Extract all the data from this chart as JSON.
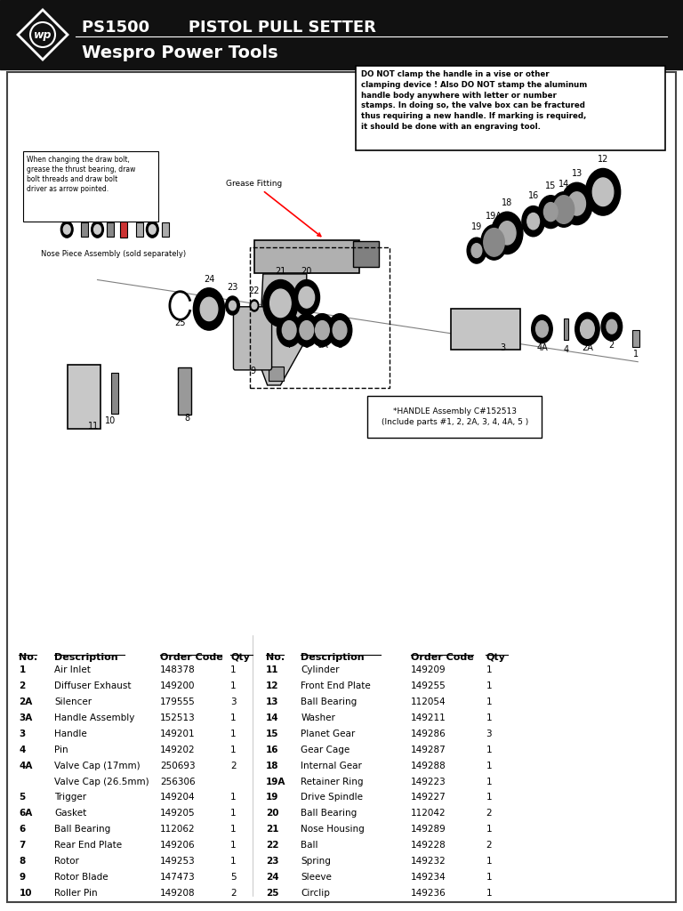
{
  "title_line1": "PS1500       PISTOL PULL SETTER",
  "title_line2": "Wespro Power Tools",
  "header_bg": "#111111",
  "header_text_color": "#ffffff",
  "warning_box_text": "DO NOT clamp the handle in a vise or other\nclamping device ! Also DO NOT stamp the aluminum\nhandle body anywhere with letter or number\nstamps. In doing so, the valve box can be fractured\nthus requiring a new handle. If marking is required,\nit should be done with an engraving tool.",
  "grease_fitting_label": "Grease Fitting",
  "draw_bolt_text": "When changing the draw bolt,\ngrease the thrust bearing, draw\nbolt threads and draw bolt\ndriver as arrow pointed.",
  "nose_piece_text": "Nose Piece Assembly (sold separately)",
  "handle_assembly_text": "*HANDLE Assembly C#152513\n(Include parts #1, 2, 2A, 3, 4, 4A, 5 )",
  "table_headers": [
    "No.",
    "Description",
    "Order Code",
    "Qty"
  ],
  "table_data_left": [
    [
      "1",
      "Air Inlet",
      "148378",
      "1"
    ],
    [
      "2",
      "Diffuser Exhaust",
      "149200",
      "1"
    ],
    [
      "2A",
      "Silencer",
      "179555",
      "3"
    ],
    [
      "3A",
      "Handle Assembly",
      "152513",
      "1"
    ],
    [
      "3",
      "Handle",
      "149201",
      "1"
    ],
    [
      "4",
      "Pin",
      "149202",
      "1"
    ],
    [
      "4A",
      "Valve Cap (17mm)",
      "250693",
      "2"
    ],
    [
      "",
      "Valve Cap (26.5mm)",
      "256306",
      ""
    ],
    [
      "5",
      "Trigger",
      "149204",
      "1"
    ],
    [
      "6A",
      "Gasket",
      "149205",
      "1"
    ],
    [
      "6",
      "Ball Bearing",
      "112062",
      "1"
    ],
    [
      "7",
      "Rear End Plate",
      "149206",
      "1"
    ],
    [
      "8",
      "Rotor",
      "149253",
      "1"
    ],
    [
      "9",
      "Rotor Blade",
      "147473",
      "5"
    ],
    [
      "10",
      "Roller Pin",
      "149208",
      "2"
    ]
  ],
  "table_data_right": [
    [
      "11",
      "Cylinder",
      "149209",
      "1"
    ],
    [
      "12",
      "Front End Plate",
      "149255",
      "1"
    ],
    [
      "13",
      "Ball Bearing",
      "112054",
      "1"
    ],
    [
      "14",
      "Washer",
      "149211",
      "1"
    ],
    [
      "15",
      "Planet Gear",
      "149286",
      "3"
    ],
    [
      "16",
      "Gear Cage",
      "149287",
      "1"
    ],
    [
      "18",
      "Internal Gear",
      "149288",
      "1"
    ],
    [
      "19A",
      "Retainer Ring",
      "149223",
      "1"
    ],
    [
      "19",
      "Drive Spindle",
      "149227",
      "1"
    ],
    [
      "20",
      "Ball Bearing",
      "112042",
      "2"
    ],
    [
      "21",
      "Nose Housing",
      "149289",
      "1"
    ],
    [
      "22",
      "Ball",
      "149228",
      "2"
    ],
    [
      "23",
      "Spring",
      "149232",
      "1"
    ],
    [
      "24",
      "Sleeve",
      "149234",
      "1"
    ],
    [
      "25",
      "Circlip",
      "149236",
      "1"
    ]
  ],
  "bold_nos_left": [
    "1",
    "2",
    "2A",
    "3A",
    "3",
    "4",
    "4A",
    "5",
    "6A",
    "6",
    "7",
    "8",
    "9",
    "10"
  ],
  "bold_nos_right": [
    "11",
    "12",
    "13",
    "14",
    "15",
    "16",
    "18",
    "19A",
    "19",
    "20",
    "21",
    "22",
    "23",
    "24",
    "25"
  ]
}
